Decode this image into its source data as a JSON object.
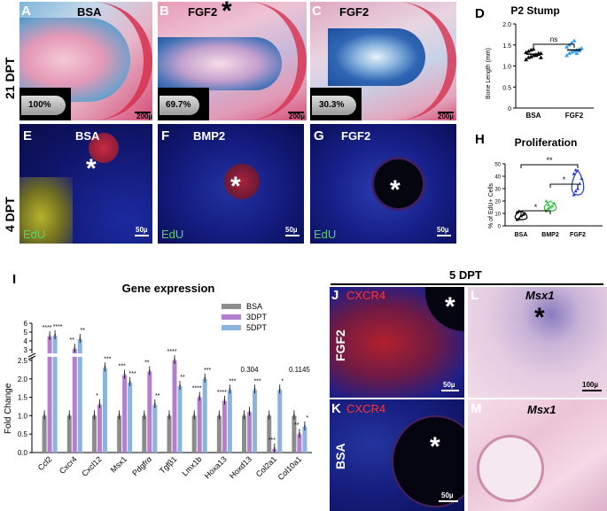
{
  "row_labels": {
    "dpt21": "21 DPT",
    "dpt4": "4 DPT"
  },
  "panels": {
    "A": {
      "letter": "A",
      "title": "BSA",
      "inset_pct": "100%",
      "scale": "200µ"
    },
    "B": {
      "letter": "B",
      "title": "FGF2",
      "inset_pct": "69.7%",
      "scale": "200µ"
    },
    "C": {
      "letter": "C",
      "title": "FGF2",
      "inset_pct": "30.3%",
      "scale": "200µ"
    },
    "D": {
      "letter": "D",
      "title": "P2 Stump"
    },
    "E": {
      "letter": "E",
      "title": "BSA",
      "stain": "EdU",
      "scale": "50µ"
    },
    "F": {
      "letter": "F",
      "title": "BMP2",
      "stain": "EdU",
      "scale": "50µ"
    },
    "G": {
      "letter": "G",
      "title": "FGF2",
      "stain": "EdU",
      "scale": "50µ"
    },
    "H": {
      "letter": "H",
      "title": "Proliferation"
    },
    "I": {
      "letter": "I",
      "title": "Gene expression"
    },
    "J": {
      "letter": "J",
      "stain": "CXCR4",
      "side": "FGF2",
      "scale": "50µ"
    },
    "K": {
      "letter": "K",
      "stain": "CXCR4",
      "side": "BSA",
      "scale": "50µ"
    },
    "L": {
      "letter": "L",
      "gene": "Msx1",
      "scale": "100µ"
    },
    "M": {
      "letter": "M",
      "gene": "Msx1"
    }
  },
  "dpt5_label": "5 DPT",
  "chart_data": [
    {
      "type": "scatter",
      "panel": "D",
      "title": "P2 Stump",
      "ylabel": "Bone Length (mm)",
      "categories": [
        "BSA",
        "FGF2"
      ],
      "yticks": [
        "0",
        "0.5",
        "1.0",
        "1.5",
        "2.0"
      ],
      "ylim": [
        0,
        2.0
      ],
      "means": [
        1.28,
        1.38
      ],
      "sd": [
        0.1,
        0.12
      ],
      "points": [
        [
          1.15,
          1.2,
          1.22,
          1.25,
          1.27,
          1.28,
          1.3,
          1.32,
          1.35,
          1.38,
          1.4,
          1.25,
          1.3,
          1.2
        ],
        [
          1.25,
          1.3,
          1.33,
          1.35,
          1.38,
          1.4,
          1.42,
          1.45,
          1.5,
          1.55,
          1.6,
          1.3,
          1.36
        ]
      ],
      "sig": [
        "ns"
      ]
    },
    {
      "type": "scatter",
      "panel": "H",
      "title": "Proliferation",
      "ylabel": "% of EdU+ Cells",
      "categories": [
        "BSA",
        "BMP2",
        "FGF2"
      ],
      "yticks": [
        "0",
        "10",
        "20",
        "30",
        "40",
        "50"
      ],
      "ylim": [
        0,
        50
      ],
      "points": [
        [
          5,
          6,
          8,
          9,
          10,
          11,
          12,
          8
        ],
        [
          12,
          14,
          15,
          16,
          18,
          20,
          17
        ],
        [
          25,
          28,
          30,
          34,
          38,
          42,
          45
        ]
      ],
      "sig": [
        "*",
        "*",
        "**"
      ]
    },
    {
      "type": "bar",
      "panel": "I",
      "title": "Gene expression",
      "ylabel": "Fold Change",
      "yticks_lower": [
        "0.0",
        "0.5",
        "1.0",
        "1.5",
        "2.0",
        "2.5"
      ],
      "yticks_upper": [
        "3",
        "4",
        "5",
        "6"
      ],
      "categories": [
        "Ccl2",
        "Cxcr4",
        "Cxcl12",
        "Msx1",
        "Pdgfrα",
        "Tgfβ1",
        "Lmx1b",
        "Hoxa13",
        "Hoxd13",
        "Col2a1",
        "Col10a1"
      ],
      "series": [
        {
          "name": "BSA",
          "color": "#8c8c8c",
          "values": [
            1,
            1,
            1,
            1,
            1,
            1,
            1,
            1,
            1,
            1,
            1
          ]
        },
        {
          "name": "3DPT",
          "color": "#b57fcf",
          "values": [
            4.5,
            3.1,
            1.3,
            2.1,
            2.2,
            2.5,
            1.5,
            1.4,
            1.1,
            0.1,
            0.5
          ]
        },
        {
          "name": "5DPT",
          "color": "#8ab4de",
          "values": [
            4.6,
            4.2,
            2.3,
            1.9,
            1.3,
            1.8,
            2.0,
            1.7,
            1.7,
            1.7,
            0.7
          ]
        }
      ],
      "sig3": [
        "****",
        "**",
        "*",
        "***",
        "**",
        "****",
        "****",
        "****",
        "",
        "***",
        "**"
      ],
      "sig5": [
        "****",
        "**",
        "***",
        "***",
        "**",
        "**",
        "***",
        "***",
        "***",
        "*",
        "*"
      ],
      "annot": [
        {
          "cat": "Hoxd13",
          "text": "0.304"
        },
        {
          "cat": "Col10a1",
          "text": "0.1145"
        }
      ]
    }
  ]
}
